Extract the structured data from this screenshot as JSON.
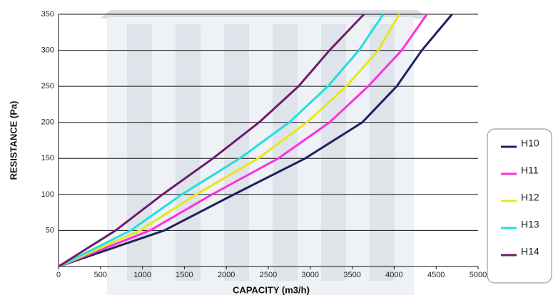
{
  "chart_data": {
    "type": "line",
    "x_label": "CAPACITY (m3/h)",
    "y_label": "RESISTANCE (Pa)",
    "xlim": [
      0,
      5000
    ],
    "ylim": [
      0,
      350
    ],
    "xticks": [
      0,
      500,
      1000,
      1500,
      2000,
      2500,
      3000,
      3500,
      4000,
      4500,
      5000
    ],
    "yticks": [
      50,
      100,
      150,
      200,
      250,
      300,
      350
    ],
    "grid": true,
    "legend": "right",
    "series": [
      {
        "name": "H10",
        "color": "#1c215e",
        "x": [
          0,
          1260,
          2090,
          2940,
          3620,
          4030,
          4330,
          4690
        ],
        "values": [
          0,
          50,
          100,
          150,
          200,
          250,
          300,
          350
        ]
      },
      {
        "name": "H11",
        "color": "#ff30dc",
        "x": [
          0,
          1090,
          1830,
          2620,
          3230,
          3690,
          4090,
          4390
        ],
        "values": [
          0,
          50,
          100,
          150,
          200,
          250,
          300,
          350
        ]
      },
      {
        "name": "H12",
        "color": "#e6e61c",
        "x": [
          0,
          970,
          1640,
          2380,
          2960,
          3430,
          3810,
          4060
        ],
        "values": [
          0,
          50,
          100,
          150,
          200,
          250,
          300,
          350
        ]
      },
      {
        "name": "H13",
        "color": "#22dede",
        "x": [
          0,
          860,
          1470,
          2160,
          2750,
          3210,
          3580,
          3870
        ],
        "values": [
          0,
          50,
          100,
          150,
          200,
          250,
          300,
          350
        ]
      },
      {
        "name": "H14",
        "color": "#6e1c6c",
        "x": [
          0,
          680,
          1240,
          1840,
          2390,
          2860,
          3230,
          3640
        ],
        "values": [
          0,
          50,
          100,
          150,
          200,
          250,
          300,
          350
        ]
      }
    ]
  }
}
